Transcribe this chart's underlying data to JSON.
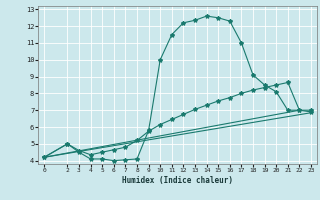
{
  "title": "",
  "xlabel": "Humidex (Indice chaleur)",
  "ylabel": "",
  "bg_color": "#cce8ec",
  "grid_color": "#ffffff",
  "line_color": "#1a7a6e",
  "xlim": [
    -0.5,
    23.5
  ],
  "ylim": [
    3.8,
    13.2
  ],
  "xticks": [
    0,
    2,
    3,
    4,
    5,
    6,
    7,
    8,
    9,
    10,
    11,
    12,
    13,
    14,
    15,
    16,
    17,
    18,
    19,
    20,
    21,
    22,
    23
  ],
  "yticks": [
    4,
    5,
    6,
    7,
    8,
    9,
    10,
    11,
    12,
    13
  ],
  "line1_x": [
    0,
    2,
    3,
    4,
    5,
    6,
    7,
    8,
    9,
    10,
    11,
    12,
    13,
    14,
    15,
    16,
    17,
    18,
    19,
    20,
    21,
    22,
    23
  ],
  "line1_y": [
    4.2,
    5.0,
    4.5,
    4.1,
    4.1,
    4.0,
    4.05,
    4.1,
    5.8,
    10.0,
    11.5,
    12.2,
    12.35,
    12.6,
    12.5,
    12.3,
    11.0,
    9.1,
    8.5,
    8.1,
    7.0,
    7.0,
    6.9
  ],
  "line2_x": [
    0,
    2,
    3,
    4,
    5,
    6,
    7,
    8,
    9,
    10,
    11,
    12,
    13,
    14,
    15,
    16,
    17,
    18,
    19,
    20,
    21,
    22,
    23
  ],
  "line2_y": [
    4.2,
    5.0,
    4.6,
    4.35,
    4.5,
    4.65,
    4.8,
    5.2,
    5.75,
    6.15,
    6.45,
    6.75,
    7.05,
    7.3,
    7.55,
    7.75,
    8.0,
    8.2,
    8.35,
    8.5,
    8.65,
    7.0,
    7.0
  ],
  "line3_x": [
    0,
    22
  ],
  "line3_y": [
    4.2,
    7.0
  ],
  "line4_x": [
    0,
    23
  ],
  "line4_y": [
    4.2,
    6.85
  ]
}
